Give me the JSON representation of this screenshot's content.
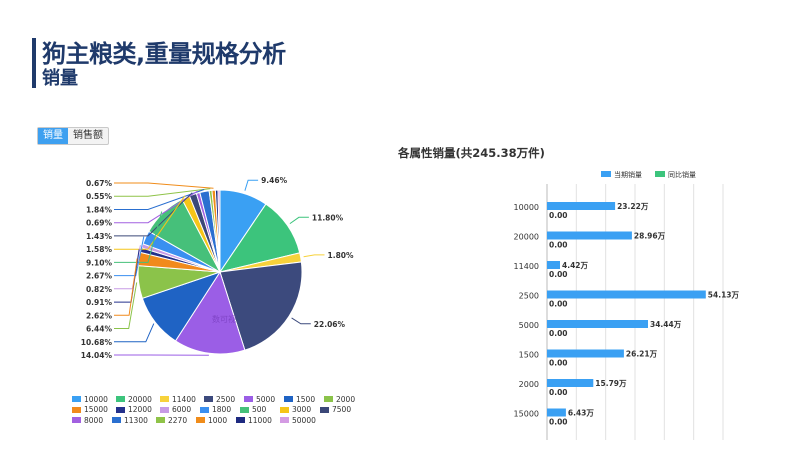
{
  "header": {
    "title": "狗主粮类,重量规格分析",
    "subtitle": "销量"
  },
  "tabs": [
    {
      "label": "销量",
      "active": true
    },
    {
      "label": "销售额",
      "active": false
    }
  ],
  "chart_data": [
    {
      "type": "pie",
      "title": "",
      "watermark": "数可视",
      "slices": [
        {
          "name": "10000",
          "value": 9.46,
          "label": "9.46%",
          "color": "#3aa0f3"
        },
        {
          "name": "20000",
          "value": 11.8,
          "label": "11.80%",
          "color": "#3cc47c"
        },
        {
          "name": "11400",
          "value": 1.8,
          "label": "1.80%",
          "color": "#f7d23b"
        },
        {
          "name": "2500",
          "value": 22.06,
          "label": "22.06%",
          "color": "#3c4a7d"
        },
        {
          "name": "5000",
          "value": 14.04,
          "label": "14.04%",
          "color": "#9b5ee6"
        },
        {
          "name": "1500",
          "value": 10.68,
          "label": "10.68%",
          "color": "#1f63c4"
        },
        {
          "name": "2000",
          "value": 6.44,
          "label": "6.44%",
          "color": "#8bc34a"
        },
        {
          "name": "15000",
          "value": 2.62,
          "label": "2.62%",
          "color": "#f18a1c"
        },
        {
          "name": "12000",
          "value": 0.91,
          "label": "0.91%",
          "color": "#24318c"
        },
        {
          "name": "6000",
          "value": 0.82,
          "label": "0.82%",
          "color": "#c79be6"
        },
        {
          "name": "1800",
          "value": 2.67,
          "label": "2.67%",
          "color": "#3a8ff0"
        },
        {
          "name": "500",
          "value": 9.1,
          "label": "9.10%",
          "color": "#46c07a"
        },
        {
          "name": "3000",
          "value": 1.58,
          "label": "1.58%",
          "color": "#f5c518"
        },
        {
          "name": "7500",
          "value": 1.43,
          "label": "1.43%",
          "color": "#3b4878"
        },
        {
          "name": "8000",
          "value": 0.69,
          "label": "0.69%",
          "color": "#a260e0"
        },
        {
          "name": "11300",
          "value": 1.84,
          "label": "1.84%",
          "color": "#2a6fd0"
        },
        {
          "name": "2270",
          "value": 0.55,
          "label": "0.55%",
          "color": "#8fc348"
        },
        {
          "name": "1000",
          "value": 0.67,
          "label": "0.67%",
          "color": "#f08c1a"
        },
        {
          "name": "11000",
          "value": 0.5,
          "label": "",
          "color": "#1e2a80"
        },
        {
          "name": "50000",
          "value": 0.4,
          "label": "",
          "color": "#d49be3"
        }
      ]
    },
    {
      "type": "bar",
      "title": "各属性销量(共245.38万件)",
      "orientation": "horizontal",
      "categories": [
        "10000",
        "20000",
        "11400",
        "2500",
        "5000",
        "1500",
        "2000",
        "15000"
      ],
      "series": [
        {
          "name": "当期销量",
          "color": "#3aa0f3",
          "values": [
            23.22,
            28.96,
            4.42,
            54.13,
            34.44,
            26.21,
            15.79,
            6.43
          ],
          "labels": [
            "23.22万",
            "28.96万",
            "4.42万",
            "54.13万",
            "34.44万",
            "26.21万",
            "15.79万",
            "6.43万"
          ]
        },
        {
          "name": "同比销量",
          "color": "#3cc47c",
          "values": [
            0,
            0,
            0,
            0,
            0,
            0,
            0,
            0
          ],
          "labels": [
            "0.00",
            "0.00",
            "0.00",
            "0.00",
            "0.00",
            "0.00",
            "0.00",
            "0.00"
          ]
        }
      ],
      "xlim": [
        0,
        60
      ],
      "grid": true,
      "legend_position": "top"
    }
  ]
}
